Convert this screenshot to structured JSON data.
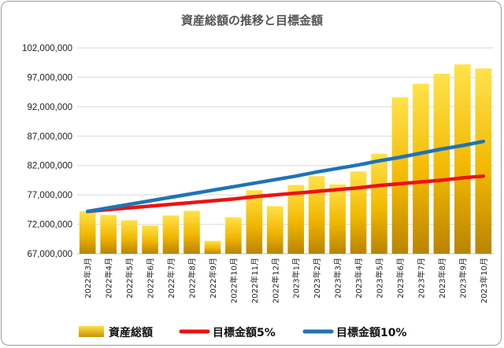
{
  "chart_data": {
    "type": "bar",
    "title": "資産総額の推移と目標金額",
    "categories": [
      "2022年3月",
      "2022年4月",
      "2022年5月",
      "2022年6月",
      "2022年7月",
      "2022年8月",
      "2022年9月",
      "2022年10月",
      "2022年11月",
      "2022年12月",
      "2023年1月",
      "2023年2月",
      "2023年3月",
      "2023年4月",
      "2023年5月",
      "2023年6月",
      "2023年7月",
      "2023年8月",
      "2023年9月",
      "2023年10月"
    ],
    "ylim": [
      67000000,
      102000000
    ],
    "yticks": [
      67000000,
      72000000,
      77000000,
      82000000,
      87000000,
      92000000,
      97000000,
      102000000
    ],
    "ytick_labels": [
      "67,000,000",
      "72,000,000",
      "77,000,000",
      "82,000,000",
      "87,000,000",
      "92,000,000",
      "97,000,000",
      "102,000,000"
    ],
    "grid": "horizontal",
    "legend_position": "bottom",
    "series": [
      {
        "name": "資産総額",
        "kind": "bar",
        "color": "#f2b800",
        "values": [
          74200000,
          73600000,
          72700000,
          71800000,
          73500000,
          74300000,
          69200000,
          73200000,
          77800000,
          75100000,
          78700000,
          80200000,
          78800000,
          81000000,
          84000000,
          93600000,
          95900000,
          97600000,
          99200000,
          98500000
        ]
      },
      {
        "name": "目標金額5%",
        "kind": "line",
        "color": "#ee1111",
        "values": [
          74200000,
          74500000,
          74800000,
          75100000,
          75400000,
          75700000,
          76000000,
          76300000,
          76700000,
          77000000,
          77300000,
          77600000,
          77900000,
          78200000,
          78600000,
          78900000,
          79200000,
          79500000,
          79900000,
          80200000
        ]
      },
      {
        "name": "目標金額10%",
        "kind": "line",
        "color": "#1f73b7",
        "values": [
          74200000,
          74800000,
          75400000,
          76000000,
          76600000,
          77200000,
          77800000,
          78400000,
          79000000,
          79600000,
          80200000,
          80900000,
          81500000,
          82100000,
          82800000,
          83400000,
          84100000,
          84800000,
          85400000,
          86100000
        ]
      }
    ]
  }
}
